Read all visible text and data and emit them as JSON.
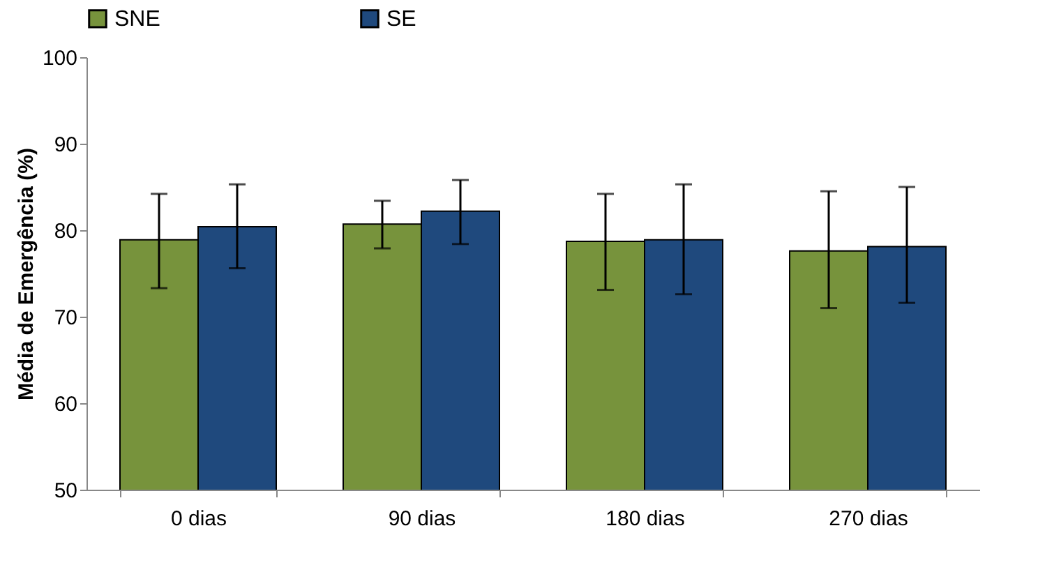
{
  "chart_data": {
    "type": "bar",
    "ylabel": "Média de Emergência (%)",
    "categories": [
      "0 dias",
      "90 dias",
      "180 dias",
      "270 dias"
    ],
    "series": [
      {
        "name": "SNE",
        "color": "#77933c",
        "values": [
          78.9,
          80.7,
          78.7,
          77.6
        ],
        "errors": [
          [
            73.3,
            84.2
          ],
          [
            77.9,
            83.4
          ],
          [
            73.1,
            84.2
          ],
          [
            71.0,
            84.5
          ]
        ]
      },
      {
        "name": "SE",
        "color": "#1f497d",
        "values": [
          80.4,
          82.2,
          78.9,
          78.1
        ],
        "errors": [
          [
            75.6,
            85.3
          ],
          [
            78.4,
            85.8
          ],
          [
            72.6,
            85.3
          ],
          [
            71.6,
            85.0
          ]
        ]
      }
    ],
    "ylim": [
      50,
      100
    ],
    "yticks": [
      50,
      60,
      70,
      80,
      90,
      100
    ],
    "grid": false,
    "legend": "top"
  }
}
